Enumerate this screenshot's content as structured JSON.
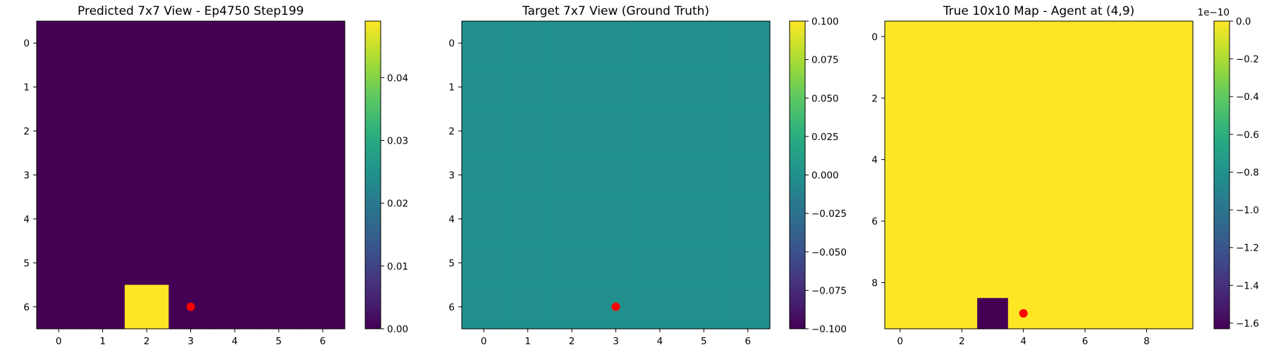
{
  "chart_data": [
    {
      "type": "heatmap",
      "title": "Predicted 7x7 View - Ep4750 Step199",
      "xlabel": "",
      "ylabel": "",
      "rows": 7,
      "cols": 7,
      "xticks": [
        0,
        1,
        2,
        3,
        4,
        5,
        6
      ],
      "yticks": [
        0,
        1,
        2,
        3,
        4,
        5,
        6
      ],
      "values": [
        [
          0,
          0,
          0,
          0,
          0,
          0,
          0
        ],
        [
          0,
          0,
          0,
          0,
          0,
          0,
          0
        ],
        [
          0,
          0,
          0,
          0,
          0,
          0,
          0
        ],
        [
          0,
          0,
          0,
          0,
          0,
          0,
          0
        ],
        [
          0,
          0,
          0,
          0,
          0,
          0,
          0
        ],
        [
          0,
          0,
          0,
          0,
          0,
          0,
          0
        ],
        [
          0,
          0,
          0.049,
          0,
          0,
          0,
          0
        ]
      ],
      "clim": [
        0,
        0.049
      ],
      "colorbar_ticks": [
        0.0,
        0.01,
        0.02,
        0.03,
        0.04
      ],
      "colorbar_labels": [
        "0.00",
        "0.01",
        "0.02",
        "0.03",
        "0.04"
      ],
      "colorbar_offset_label": "",
      "marker": {
        "x": 3,
        "y": 6,
        "color": "#ff0000"
      },
      "colormap": "viridis"
    },
    {
      "type": "heatmap",
      "title": "Target 7x7 View (Ground Truth)",
      "xlabel": "",
      "ylabel": "",
      "rows": 7,
      "cols": 7,
      "xticks": [
        0,
        1,
        2,
        3,
        4,
        5,
        6
      ],
      "yticks": [
        0,
        1,
        2,
        3,
        4,
        5,
        6
      ],
      "values": [
        [
          0,
          0,
          0,
          0,
          0,
          0,
          0
        ],
        [
          0,
          0,
          0,
          0,
          0,
          0,
          0
        ],
        [
          0,
          0,
          0,
          0,
          0,
          0,
          0
        ],
        [
          0,
          0,
          0,
          0,
          0,
          0,
          0
        ],
        [
          0,
          0,
          0,
          0,
          0,
          0,
          0
        ],
        [
          0,
          0,
          0,
          0,
          0,
          0,
          0
        ],
        [
          0,
          0,
          0,
          0,
          0,
          0,
          0
        ]
      ],
      "clim": [
        -0.1,
        0.1
      ],
      "colorbar_ticks": [
        -0.1,
        -0.075,
        -0.05,
        -0.025,
        0.0,
        0.025,
        0.05,
        0.075,
        0.1
      ],
      "colorbar_labels": [
        "−0.100",
        "−0.075",
        "−0.050",
        "−0.025",
        "0.000",
        "0.025",
        "0.050",
        "0.075",
        "0.100"
      ],
      "colorbar_offset_label": "",
      "marker": {
        "x": 3,
        "y": 6,
        "color": "#ff0000"
      },
      "colormap": "viridis"
    },
    {
      "type": "heatmap",
      "title": "True 10x10 Map - Agent at (4,9)",
      "xlabel": "",
      "ylabel": "",
      "rows": 10,
      "cols": 10,
      "xticks": [
        0,
        2,
        4,
        6,
        8
      ],
      "yticks": [
        0,
        2,
        4,
        6,
        8
      ],
      "values": [
        [
          0,
          0,
          0,
          0,
          0,
          0,
          0,
          0,
          0,
          0
        ],
        [
          0,
          0,
          0,
          0,
          0,
          0,
          0,
          0,
          0,
          0
        ],
        [
          0,
          0,
          0,
          0,
          0,
          0,
          0,
          0,
          0,
          0
        ],
        [
          0,
          0,
          0,
          0,
          0,
          0,
          0,
          0,
          0,
          0
        ],
        [
          0,
          0,
          0,
          0,
          0,
          0,
          0,
          0,
          0,
          0
        ],
        [
          0,
          0,
          0,
          0,
          0,
          0,
          0,
          0,
          0,
          0
        ],
        [
          0,
          0,
          0,
          0,
          0,
          0,
          0,
          0,
          0,
          0
        ],
        [
          0,
          0,
          0,
          0,
          0,
          0,
          0,
          0,
          0,
          0
        ],
        [
          0,
          0,
          0,
          0,
          0,
          0,
          0,
          0,
          0,
          0
        ],
        [
          0,
          0,
          0,
          -1.63,
          0,
          0,
          0,
          0,
          0,
          0
        ]
      ],
      "clim": [
        -1.63,
        0
      ],
      "colorbar_ticks": [
        -1.6,
        -1.4,
        -1.2,
        -1.0,
        -0.8,
        -0.6,
        -0.4,
        -0.2,
        0.0
      ],
      "colorbar_labels": [
        "−1.6",
        "−1.4",
        "−1.2",
        "−1.0",
        "−0.8",
        "−0.6",
        "−0.4",
        "−0.2",
        "0.0"
      ],
      "colorbar_offset_label": "1e−10",
      "marker": {
        "x": 4,
        "y": 9,
        "color": "#ff0000"
      },
      "colormap": "viridis"
    }
  ]
}
